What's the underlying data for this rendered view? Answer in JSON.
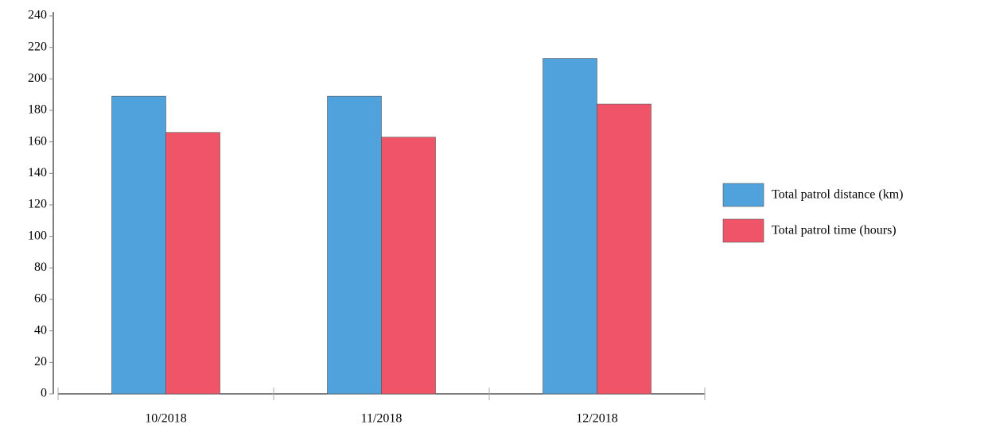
{
  "chart_data": {
    "type": "bar",
    "categories": [
      "10/2018",
      "11/2018",
      "12/2018"
    ],
    "series": [
      {
        "name": "Total patrol distance (km)",
        "color": "#4fa2db",
        "values": [
          189,
          189,
          213
        ]
      },
      {
        "name": "Total patrol time (hours)",
        "color": "#f05468",
        "values": [
          166,
          163,
          184
        ]
      }
    ],
    "ylim": [
      0,
      240
    ],
    "yticks": [
      0,
      20,
      40,
      60,
      80,
      100,
      120,
      140,
      160,
      180,
      200,
      220,
      240
    ],
    "legend": "right"
  }
}
